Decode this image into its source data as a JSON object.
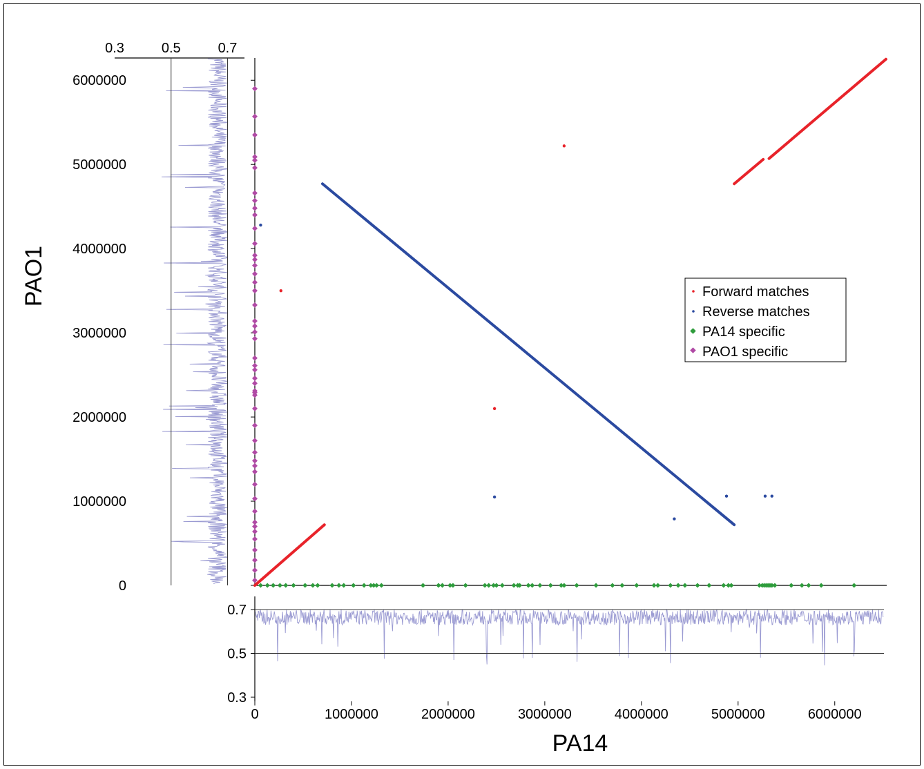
{
  "colors": {
    "forward": "#e8232a",
    "reverse": "#2b4aa0",
    "pa14_specific": "#2e9c3c",
    "pao1_specific": "#b04aa5",
    "gc_trace": "#9a9ad2",
    "axis": "#000000",
    "ref_line": "#333333"
  },
  "chart_data": {
    "type": "scatter",
    "xlabel": "PA14",
    "ylabel": "PAO1",
    "xlim": [
      0,
      6537648
    ],
    "ylim": [
      0,
      6264404
    ],
    "x_ticks": [
      "0",
      "1000000",
      "2000000",
      "3000000",
      "4000000",
      "5000000",
      "6000000"
    ],
    "y_ticks": [
      "0",
      "1000000",
      "2000000",
      "3000000",
      "4000000",
      "5000000",
      "6000000"
    ],
    "legend": {
      "placement": "right",
      "entries": [
        "Forward matches",
        "Reverse matches",
        "PA14 specific",
        "PAO1 specific"
      ]
    },
    "series": [
      {
        "name": "Forward matches",
        "segments": [
          [
            [
              0,
              0
            ],
            [
              720000,
              720000
            ]
          ],
          [
            [
              4960000,
              4770000
            ],
            [
              5260000,
              5060000
            ]
          ],
          [
            [
              5320000,
              5070000
            ],
            [
              6530000,
              6250000
            ]
          ]
        ],
        "points": [
          [
            3200000,
            5220000
          ],
          [
            270000,
            3500000
          ],
          [
            2480000,
            2100000
          ]
        ]
      },
      {
        "name": "Reverse matches",
        "segments": [
          [
            [
              700000,
              4770000
            ],
            [
              4960000,
              720000
            ]
          ]
        ],
        "points": [
          [
            2480000,
            1050000
          ],
          [
            4880000,
            1060000
          ],
          [
            5280000,
            1060000
          ],
          [
            5350000,
            1060000
          ],
          [
            4340000,
            790000
          ],
          [
            60000,
            4280000
          ]
        ]
      },
      {
        "name": "PA14 specific",
        "y": 0,
        "x": [
          60000,
          130000,
          190000,
          260000,
          320000,
          400000,
          520000,
          600000,
          650000,
          800000,
          870000,
          920000,
          1020000,
          1130000,
          1200000,
          1230000,
          1260000,
          1310000,
          1740000,
          1900000,
          1940000,
          2020000,
          2050000,
          2180000,
          2380000,
          2420000,
          2470000,
          2500000,
          2560000,
          2680000,
          2720000,
          2740000,
          2830000,
          2870000,
          2950000,
          3060000,
          3170000,
          3200000,
          3330000,
          3530000,
          3700000,
          3800000,
          3950000,
          4130000,
          4170000,
          4300000,
          4380000,
          4450000,
          4580000,
          4700000,
          4850000,
          4900000,
          4930000,
          5220000,
          5250000,
          5270000,
          5290000,
          5310000,
          5330000,
          5350000,
          5380000,
          5550000,
          5660000,
          5730000,
          5860000,
          6200000
        ]
      },
      {
        "name": "PAO1 specific",
        "x": 0,
        "y": [
          5900000,
          5570000,
          5350000,
          5050000,
          5090000,
          4960000,
          4660000,
          4570000,
          4480000,
          4400000,
          4240000,
          4060000,
          3920000,
          3870000,
          3800000,
          3700000,
          3600000,
          3500000,
          3330000,
          3140000,
          3080000,
          3010000,
          2930000,
          2700000,
          2610000,
          2560000,
          2460000,
          2400000,
          2310000,
          2290000,
          2260000,
          2100000,
          1900000,
          1720000,
          1580000,
          1480000,
          1420000,
          1350000,
          1200000,
          1030000,
          880000,
          750000,
          700000,
          640000,
          550000,
          420000,
          300000,
          180000,
          60000
        ]
      }
    ],
    "gc_panels": [
      {
        "name": "PAO1",
        "axis_ticks": [
          "0.3",
          "0.5",
          "0.7"
        ],
        "range": [
          0.3,
          0.76
        ],
        "ref_lines": [
          0.5,
          0.7
        ],
        "mean": 0.665
      },
      {
        "name": "PA14",
        "axis_ticks": [
          "0.3",
          "0.5",
          "0.7"
        ],
        "range": [
          0.3,
          0.76
        ],
        "ref_lines": [
          0.5,
          0.7
        ],
        "mean": 0.665
      }
    ]
  }
}
